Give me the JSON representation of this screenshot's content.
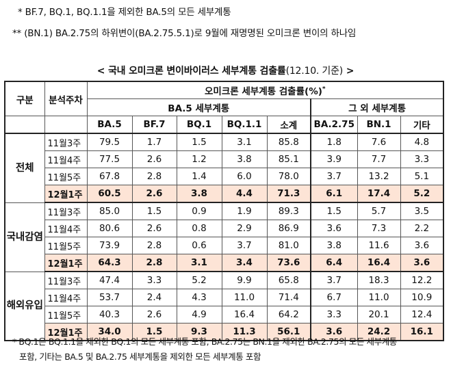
{
  "notes_top": [
    "* BF.7, BQ.1, BQ.1.1을 제외한 BA.5의 모든 세부계통",
    "** (BN.1) BA.2.75의 하위변이(BA.2.75.5.1)로 9월에 재명명된 오미크론 변이의 하나임"
  ],
  "title": {
    "main": "< 국내 오미크론 변이바이러스 세부계통 검출률",
    "date": "(12.10. 기준)",
    "close": " >"
  },
  "headers": {
    "group": "구분",
    "week": "분석주차",
    "detection": "오미크론 세부계통 검출률(%)",
    "detection_sup": "*",
    "ba5_group": "BA.5 세부계통",
    "other_group": "그 외 세부계통",
    "columns": [
      "BA.5",
      "BF.7",
      "BQ.1",
      "BQ.1.1",
      "소계",
      "BA.2.75",
      "BN.1",
      "기타"
    ]
  },
  "groups": [
    {
      "name": "전체",
      "rows": [
        {
          "week": "11월3주",
          "values": [
            "79.5",
            "1.7",
            "1.5",
            "3.1",
            "85.8",
            "1.8",
            "7.6",
            "4.8"
          ],
          "current": false
        },
        {
          "week": "11월4주",
          "values": [
            "77.5",
            "2.6",
            "1.2",
            "3.8",
            "85.1",
            "3.9",
            "7.7",
            "3.3"
          ],
          "current": false
        },
        {
          "week": "11월5주",
          "values": [
            "67.8",
            "2.8",
            "1.4",
            "6.0",
            "78.0",
            "3.7",
            "13.2",
            "5.1"
          ],
          "current": false
        },
        {
          "week": "12월1주",
          "values": [
            "60.5",
            "2.6",
            "3.8",
            "4.4",
            "71.3",
            "6.1",
            "17.4",
            "5.2"
          ],
          "current": true
        }
      ]
    },
    {
      "name": "국내감염",
      "rows": [
        {
          "week": "11월3주",
          "values": [
            "85.0",
            "1.5",
            "0.9",
            "1.9",
            "89.3",
            "1.5",
            "5.7",
            "3.5"
          ],
          "current": false
        },
        {
          "week": "11월4주",
          "values": [
            "80.6",
            "2.6",
            "0.8",
            "2.9",
            "86.9",
            "3.6",
            "7.3",
            "2.2"
          ],
          "current": false
        },
        {
          "week": "11월5주",
          "values": [
            "73.9",
            "2.8",
            "0.6",
            "3.7",
            "81.0",
            "3.8",
            "11.6",
            "3.6"
          ],
          "current": false
        },
        {
          "week": "12월1주",
          "values": [
            "64.3",
            "2.8",
            "3.1",
            "3.4",
            "73.6",
            "6.4",
            "16.4",
            "3.6"
          ],
          "current": true
        }
      ]
    },
    {
      "name": "해외유입",
      "rows": [
        {
          "week": "11월3주",
          "values": [
            "47.4",
            "3.3",
            "5.2",
            "9.9",
            "65.8",
            "3.7",
            "18.3",
            "12.2"
          ],
          "current": false
        },
        {
          "week": "11월4주",
          "values": [
            "53.7",
            "2.4",
            "4.3",
            "11.0",
            "71.4",
            "6.7",
            "11.0",
            "10.9"
          ],
          "current": false
        },
        {
          "week": "11월5주",
          "values": [
            "40.3",
            "2.6",
            "4.9",
            "16.4",
            "64.2",
            "3.3",
            "20.1",
            "12.4"
          ],
          "current": false
        },
        {
          "week": "12월1주",
          "values": [
            "34.0",
            "1.5",
            "9.3",
            "11.3",
            "56.1",
            "3.6",
            "24.2",
            "16.1"
          ],
          "current": true
        }
      ]
    }
  ],
  "notes_bottom": [
    "* BQ.1은 BQ.1.1을 제외한 BQ.1의 모든 세부계통 포함, BA.2.75는 BN.1을 제외한 BA.2.75의 모든 세부계통",
    "포함, 기타는 BA.5 및 BA.2.75 세부계통을 제외한 모든 세부계통 포함"
  ],
  "colors": {
    "highlight_row": "#fde4d6",
    "border": "#222222"
  }
}
